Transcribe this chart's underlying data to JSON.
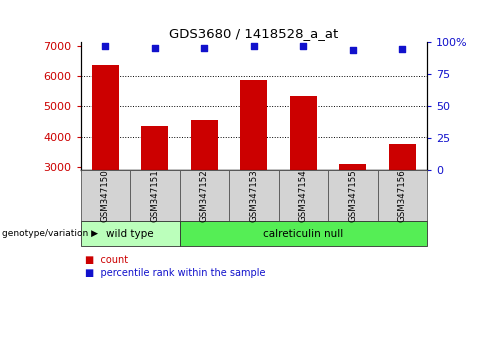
{
  "title": "GDS3680 / 1418528_a_at",
  "samples": [
    "GSM347150",
    "GSM347151",
    "GSM347152",
    "GSM347153",
    "GSM347154",
    "GSM347155",
    "GSM347156"
  ],
  "counts": [
    6350,
    4350,
    4550,
    5850,
    5350,
    3100,
    3750
  ],
  "percentiles": [
    97,
    96,
    96,
    97,
    97,
    94,
    95
  ],
  "ylim_left": [
    2900,
    7100
  ],
  "ylim_right": [
    0,
    100
  ],
  "yticks_left": [
    3000,
    4000,
    5000,
    6000,
    7000
  ],
  "yticks_right": [
    0,
    25,
    50,
    75,
    100
  ],
  "bar_color": "#cc0000",
  "dot_color": "#1111cc",
  "bar_bottom": 2900,
  "group_wild_count": 2,
  "group_null_count": 5,
  "group_wild_label": "wild type",
  "group_null_label": "calreticulin null",
  "group_wild_color": "#bbffbb",
  "group_null_color": "#55ee55",
  "group_label": "genotype/variation",
  "legend_count": "count",
  "legend_percentile": "percentile rank within the sample",
  "sample_box_color": "#d3d3d3",
  "plot_bg": "#ffffff"
}
